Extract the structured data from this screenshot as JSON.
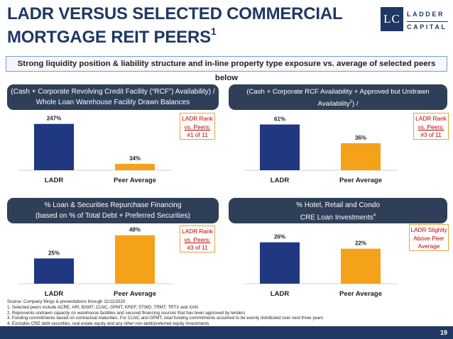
{
  "header": {
    "title_line1": "LADR VERSUS SELECTED COMMERCIAL",
    "title_line2": "MORTGAGE REIT PEERS",
    "title_footnote": "1",
    "logo_mark": "LC",
    "logo_line1": "LADDER",
    "logo_line2": "CAPITAL"
  },
  "tagline": "Strong liquidity position & liability structure and in-line property type exposure vs. average of selected peers below",
  "panels": [
    {
      "header_line1": "(Cash + Corporate Revolving Credit Facility (“RCF”) Availability) /",
      "header_line2": "Whole Loan Warehouse Facility Drawn Balances",
      "rank_line1": "LADR Rank",
      "rank_line2": "vs. Peers:",
      "rank_line3": "#1 of 11"
    },
    {
      "header_line1": "(Cash + Corporate RCF Availability + Approved but Undrawn Availability",
      "header_line1_sup": "2",
      "header_line1_tail": ") /",
      "header_line2": "(Total Drawn Warehouse & Repo Balances + NTM Funding Commitments",
      "header_line2_sup": "3",
      "header_line2_tail": ")",
      "rank_line1": "LADR Rank",
      "rank_line2": "vs. Peers:",
      "rank_line3": "#3 of 11"
    },
    {
      "header_line1": "% Loan & Securities Repurchase Financing",
      "header_line2": "(based on % of Total Debt + Preferred Securities)",
      "rank_line1": "LADR Rank",
      "rank_line2": "vs. Peers:",
      "rank_line3": "#3 of 11"
    },
    {
      "header_line1": "% Hotel, Retail and Condo",
      "header_line2": "CRE Loan Investments",
      "header_line2_sup": "4",
      "rank_line1": "LADR Slightly",
      "rank_line2": "Above Peer",
      "rank_line3": "Average"
    }
  ],
  "chart_data": [
    {
      "type": "bar",
      "categories": [
        "LADR",
        "Peer Average"
      ],
      "values": [
        247,
        34
      ],
      "value_labels": [
        "247%",
        "34%"
      ],
      "colors": [
        "#1f3880",
        "#f5a21b"
      ],
      "ylim": [
        0,
        280
      ]
    },
    {
      "type": "bar",
      "categories": [
        "LADR",
        "Peer Average"
      ],
      "values": [
        61,
        36
      ],
      "value_labels": [
        "61%",
        "36%"
      ],
      "colors": [
        "#1f3880",
        "#f5a21b"
      ],
      "ylim": [
        0,
        70
      ]
    },
    {
      "type": "bar",
      "categories": [
        "LADR",
        "Peer Average"
      ],
      "values": [
        25,
        48
      ],
      "value_labels": [
        "25%",
        "48%"
      ],
      "colors": [
        "#1f3880",
        "#f5a21b"
      ],
      "ylim": [
        0,
        52
      ]
    },
    {
      "type": "bar",
      "categories": [
        "LADR",
        "Peer Average"
      ],
      "values": [
        26,
        22
      ],
      "value_labels": [
        "26%",
        "22%"
      ],
      "colors": [
        "#1f3880",
        "#f5a21b"
      ],
      "ylim": [
        0,
        33
      ]
    }
  ],
  "footer": {
    "source": "Source: Company filings & presentations through 11/11/2020",
    "note1": "1. Selected peers include ACRE, ARI, BXMT, CLNC, GPMT, KREF, STWD, TRMT, TRTX and XAN",
    "note2": "2. Represents undrawn capacity on warehouse facilities and secured financing sources that has been approved by lenders",
    "note3": "3. Funding commitments based on contractual maturities. For CLNC and GPMT, total funding commitments assumed to be evenly distributed over next three years",
    "note4": "4. Excludes CRE debt securities, real estate equity and any other non-debt/preferred equity investments"
  },
  "page_number": "19"
}
